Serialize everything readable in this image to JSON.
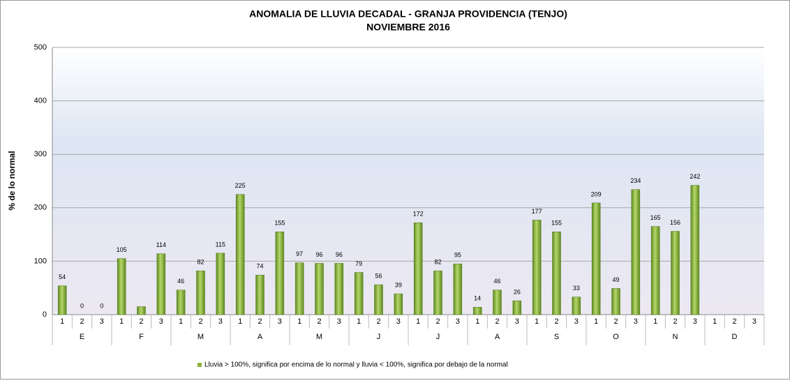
{
  "chart_data": {
    "type": "bar",
    "title": "ANOMALIA DE LLUVIA DECADAL - GRANJA PROVIDENCIA  (TENJO)",
    "subtitle": "NOVIEMBRE  2016",
    "y_label": "% de lo normal",
    "categories": [
      "1",
      "2",
      "3",
      "1",
      "2",
      "3",
      "1",
      "2",
      "3",
      "1",
      "2",
      "3",
      "1",
      "2",
      "3",
      "1",
      "2",
      "3",
      "1",
      "2",
      "3",
      "1",
      "2",
      "3",
      "1",
      "2",
      "3",
      "1",
      "2",
      "3",
      "1",
      "2",
      "3",
      "1",
      "2",
      "3"
    ],
    "groups": [
      "E",
      "F",
      "M",
      "A",
      "M",
      "J",
      "J",
      "A",
      "S",
      "O",
      "N",
      "D"
    ],
    "series": [
      {
        "name": "Lluvia > 100%, significa por encima de lo normal y lluvia < 100%, significa por debajo de la normal",
        "color": "#8db33a",
        "values": [
          54,
          0,
          0,
          105,
          15,
          114,
          46,
          82,
          115,
          225,
          74,
          155,
          97,
          96,
          96,
          79,
          56,
          39,
          172,
          82,
          95,
          14,
          46,
          26,
          177,
          155,
          33,
          209,
          49,
          234,
          165,
          156,
          242,
          null,
          null,
          null
        ],
        "value_labels": [
          "54",
          "0",
          "0",
          "105",
          null,
          "114",
          "46",
          "82",
          "115",
          "225",
          "74",
          "155",
          "97",
          "96",
          "96",
          "79",
          "56",
          "39",
          "172",
          "82",
          "95",
          "14",
          "46",
          "26",
          "177",
          "155",
          "33",
          "209",
          "49",
          "234",
          "165",
          "156",
          "242",
          null,
          null,
          null
        ]
      }
    ],
    "ylim": [
      0,
      500
    ],
    "yticks": [
      0,
      100,
      200,
      300,
      400,
      500
    ],
    "grid": true
  }
}
